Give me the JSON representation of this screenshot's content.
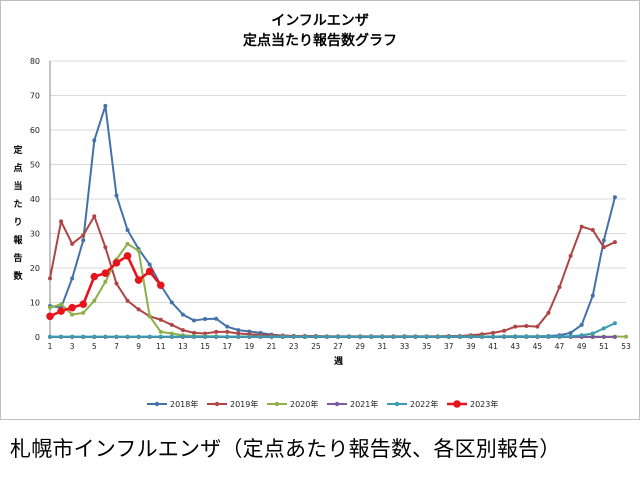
{
  "caption": "札幌市インフルエンザ（定点あたり報告数、各区別報告）",
  "chart_data": {
    "type": "line",
    "title": "インフルエンザ",
    "subtitle": "定点当たり報告数グラフ",
    "xlabel": "週",
    "ylabel": "定点当たり報告数",
    "xlim": [
      1,
      53
    ],
    "ylim": [
      0,
      80
    ],
    "yticks": [
      0,
      10,
      20,
      30,
      40,
      50,
      60,
      70,
      80
    ],
    "xticks": [
      1,
      3,
      5,
      7,
      9,
      11,
      13,
      15,
      17,
      19,
      21,
      23,
      25,
      27,
      29,
      31,
      33,
      35,
      37,
      39,
      41,
      43,
      45,
      47,
      49,
      51,
      53
    ],
    "grid": "horizontal",
    "legend_position": "bottom",
    "series": [
      {
        "name": "2018年",
        "color": "#4472a8",
        "marker_radius": 2,
        "values": [
          9,
          8.5,
          17,
          28,
          57,
          67,
          41,
          31,
          25.5,
          21,
          15,
          10,
          6.5,
          4.8,
          5.2,
          5.3,
          3,
          2,
          1.6,
          1.2,
          0.7,
          0.4,
          0.3,
          0.2,
          0.2,
          0.1,
          0.1,
          0.1,
          0.1,
          0.1,
          0.1,
          0.1,
          0.1,
          0.1,
          0.1,
          0.1,
          0.1,
          0.1,
          0.1,
          0.1,
          0.1,
          0.2,
          0.2,
          0.2,
          0.2,
          0.3,
          0.5,
          1.2,
          3.5,
          12,
          28,
          40.5
        ]
      },
      {
        "name": "2019年",
        "color": "#b04444",
        "marker_radius": 2,
        "values": [
          17,
          33.5,
          27,
          29.5,
          35,
          26,
          15.5,
          10.5,
          8,
          6,
          5,
          3.5,
          2,
          1.2,
          1,
          1.5,
          1.5,
          1,
          0.8,
          0.6,
          0.5,
          0.4,
          0.3,
          0.3,
          0.3,
          0.2,
          0.2,
          0.2,
          0.2,
          0.2,
          0.2,
          0.2,
          0.2,
          0.2,
          0.2,
          0.2,
          0.3,
          0.3,
          0.5,
          0.8,
          1.2,
          1.8,
          3,
          3.2,
          3,
          7,
          14.5,
          23.5,
          32,
          31,
          26,
          27.5
        ]
      },
      {
        "name": "2020年",
        "color": "#8db04a",
        "marker_radius": 2,
        "values": [
          8.5,
          9.5,
          6.5,
          7,
          10.5,
          16,
          22.5,
          27,
          25,
          6,
          1.5,
          1,
          0.5,
          0.3,
          0.2,
          0.2,
          0.1,
          0.1,
          0.1,
          0.1,
          0.1,
          0.1,
          0.1,
          0.1,
          0.1,
          0.1,
          0.1,
          0.1,
          0.1,
          0.1,
          0.1,
          0.1,
          0.1,
          0.1,
          0.1,
          0.1,
          0.1,
          0.1,
          0.1,
          0.1,
          0.1,
          0.1,
          0.1,
          0.1,
          0.1,
          0.1,
          0.1,
          0.1,
          0.1,
          0.1,
          0.1,
          0.1,
          0.1
        ]
      },
      {
        "name": "2021年",
        "color": "#7a5a9e",
        "marker_radius": 2,
        "values": [
          0,
          0,
          0,
          0,
          0,
          0,
          0,
          0,
          0,
          0,
          0,
          0,
          0,
          0,
          0,
          0,
          0,
          0,
          0,
          0,
          0,
          0,
          0,
          0,
          0,
          0,
          0,
          0,
          0,
          0,
          0,
          0,
          0,
          0,
          0,
          0,
          0,
          0,
          0,
          0,
          0,
          0,
          0,
          0,
          0,
          0,
          0,
          0,
          0,
          0,
          0,
          0
        ]
      },
      {
        "name": "2022年",
        "color": "#3b9bb0",
        "marker_radius": 2,
        "values": [
          0.1,
          0.1,
          0.1,
          0.1,
          0.1,
          0.1,
          0.1,
          0.1,
          0.1,
          0.1,
          0.1,
          0.1,
          0.1,
          0.1,
          0.1,
          0.1,
          0.1,
          0.1,
          0.1,
          0.1,
          0.1,
          0.1,
          0.1,
          0.1,
          0.1,
          0.1,
          0.1,
          0.1,
          0.1,
          0.1,
          0.1,
          0.1,
          0.1,
          0.1,
          0.1,
          0.1,
          0.1,
          0.1,
          0.1,
          0.1,
          0.1,
          0.1,
          0.1,
          0.1,
          0.1,
          0.1,
          0.1,
          0.2,
          0.5,
          1,
          2.5,
          4
        ]
      },
      {
        "name": "2023年",
        "color": "#e8141c",
        "marker_radius": 3.8,
        "values": [
          6,
          7.5,
          8.5,
          9.5,
          17.5,
          18.5,
          21.5,
          23.5,
          16.5,
          19,
          15
        ]
      }
    ]
  }
}
